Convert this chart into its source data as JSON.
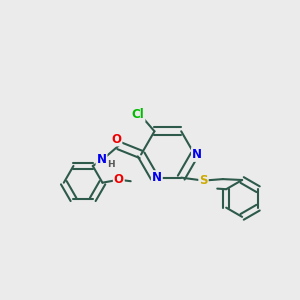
{
  "background_color": "#ebebeb",
  "bond_color": "#2d5a4a",
  "bond_width": 1.5,
  "atom_colors": {
    "C": "#2d5a4a",
    "N": "#0000ee",
    "O": "#ee0000",
    "S": "#ccaa00",
    "Cl": "#00bb00",
    "H": "#555555"
  },
  "font_size": 8.5,
  "fig_width": 3.0,
  "fig_height": 3.0,
  "dpi": 100
}
